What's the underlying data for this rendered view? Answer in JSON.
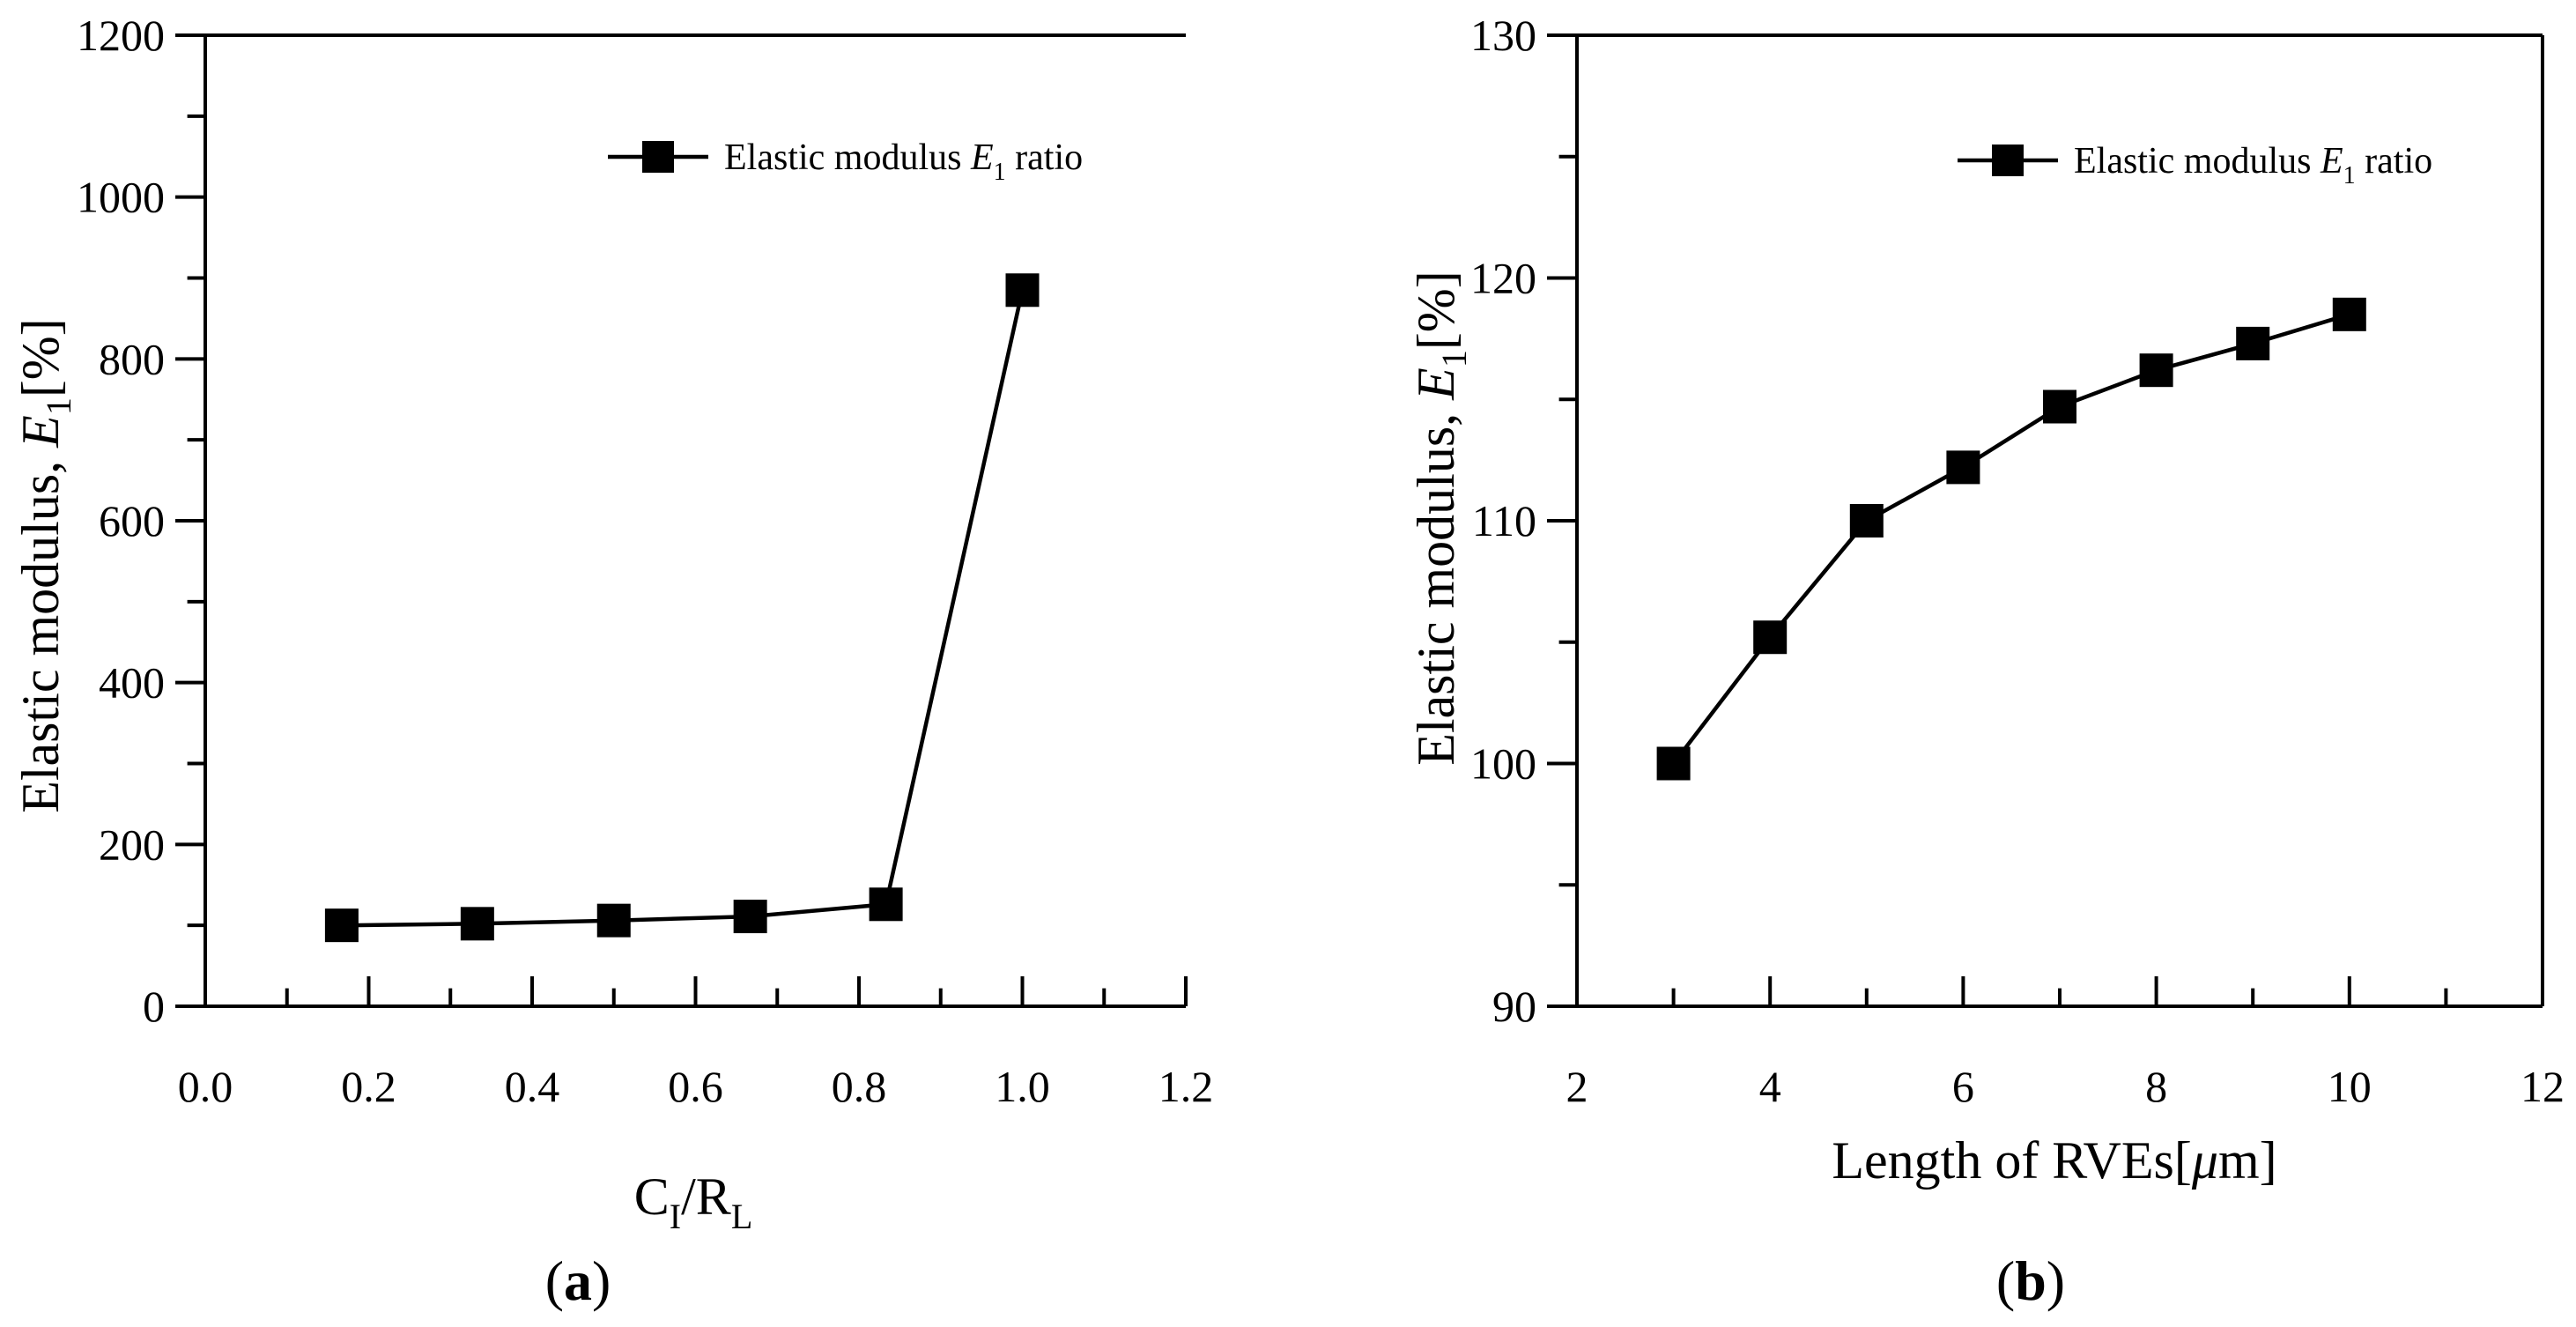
{
  "chart_data": [
    {
      "type": "line",
      "panel_label": "(a)",
      "title": "",
      "xlabel": {
        "base": "C",
        "sub1": "I",
        "mid": "/R",
        "sub2": "L"
      },
      "ylabel": {
        "prefix": "Elastic modulus, ",
        "var": "E",
        "sub": "1",
        "suffix": "[%]"
      },
      "xlim": [
        0.0,
        1.2
      ],
      "ylim": [
        0,
        1200
      ],
      "xticks": [
        0.0,
        0.2,
        0.4,
        0.6,
        0.8,
        1.0,
        1.2
      ],
      "xtick_labels": [
        "0.0",
        "0.2",
        "0.4",
        "0.6",
        "0.8",
        "1.0",
        "1.2"
      ],
      "yticks": [
        0,
        200,
        400,
        600,
        800,
        1000,
        1200
      ],
      "ytick_labels": [
        "0",
        "200",
        "400",
        "600",
        "800",
        "1000",
        "1200"
      ],
      "legend": {
        "prefix": "Elastic modulus ",
        "var": "E",
        "sub": "1",
        "suffix": " ratio",
        "position": "top-right"
      },
      "series": [
        {
          "name": "Elastic modulus E1 ratio",
          "x": [
            0.167,
            0.333,
            0.5,
            0.667,
            0.833,
            1.0
          ],
          "values": [
            100,
            102,
            106,
            111,
            126,
            885
          ]
        }
      ]
    },
    {
      "type": "line",
      "panel_label": "(b)",
      "title": "",
      "xlabel": {
        "prefix": "Length of RVEs[",
        "var": "μ",
        "suffix": "m]"
      },
      "ylabel": {
        "prefix": "Elastic modulus, ",
        "var": "E",
        "sub": "1",
        "suffix": "[%]"
      },
      "xlim": [
        2,
        12
      ],
      "ylim": [
        90,
        130
      ],
      "xticks": [
        2,
        4,
        6,
        8,
        10,
        12
      ],
      "xtick_labels": [
        "2",
        "4",
        "6",
        "8",
        "10",
        "12"
      ],
      "yticks": [
        90,
        100,
        110,
        120,
        130
      ],
      "ytick_labels": [
        "90",
        "100",
        "110",
        "120",
        "130"
      ],
      "legend": {
        "prefix": "Elastic modulus ",
        "var": "E",
        "sub": "1",
        "suffix": " ratio",
        "position": "top-right"
      },
      "series": [
        {
          "name": "Elastic modulus E1 ratio",
          "x": [
            3,
            4,
            5,
            6,
            7,
            8,
            9,
            10
          ],
          "values": [
            100,
            105.2,
            110,
            112.2,
            114.7,
            116.2,
            117.3,
            118.5
          ]
        }
      ]
    }
  ]
}
